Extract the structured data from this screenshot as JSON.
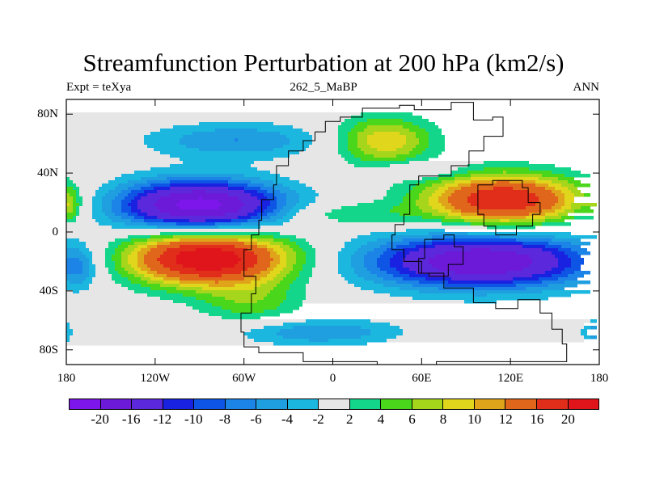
{
  "title": "Streamfunction Perturbation at 200 hPa (km2/s)",
  "subtitle": {
    "left": "Expt = teXya",
    "center": "262_5_MaBP",
    "right": "ANN"
  },
  "map_data": {
    "lat_ticks": [
      {
        "label": "80N",
        "lat": 80
      },
      {
        "label": "40N",
        "lat": 40
      },
      {
        "label": "0",
        "lat": 0
      },
      {
        "label": "40S",
        "lat": -40
      },
      {
        "label": "80S",
        "lat": -80
      }
    ],
    "lon_ticks": [
      {
        "label": "180",
        "lon": -180
      },
      {
        "label": "120W",
        "lon": -120
      },
      {
        "label": "60W",
        "lon": -60
      },
      {
        "label": "0",
        "lon": 0
      },
      {
        "label": "60E",
        "lon": 60
      },
      {
        "label": "120E",
        "lon": 120
      },
      {
        "label": "180",
        "lon": 180
      }
    ],
    "lat_range": [
      -90,
      90
    ],
    "lon_range": [
      -180,
      180
    ],
    "blobs": [
      {
        "name": "high-south-pacific",
        "lon": -85,
        "lat": -18,
        "rlon": 55,
        "rlat": 18,
        "peak": 24
      },
      {
        "name": "low-north-pacific",
        "lon": -90,
        "lat": 18,
        "rlon": 55,
        "rlat": 17,
        "peak": -22
      },
      {
        "name": "high-south-asia",
        "lon": 115,
        "lat": 22,
        "rlon": 52,
        "rlat": 17,
        "peak": 20
      },
      {
        "name": "low-indian-ocean",
        "lon": 100,
        "lat": -20,
        "rlon": 75,
        "rlat": 18,
        "peak": -20
      },
      {
        "name": "high-north-atlantic",
        "lon": 35,
        "lat": 62,
        "rlon": 32,
        "rlat": 16,
        "peak": 10
      },
      {
        "name": "low-north-pacific-high-lat",
        "lon": -65,
        "lat": 62,
        "rlon": 60,
        "rlat": 12,
        "peak": -6
      },
      {
        "name": "low-southern-ocean",
        "lon": -10,
        "lat": -68,
        "rlon": 55,
        "rlat": 9,
        "peak": -6
      },
      {
        "name": "high-south-america",
        "lon": -55,
        "lat": -48,
        "rlon": 35,
        "rlat": 15,
        "peak": 5
      },
      {
        "name": "high-atlantic-equator",
        "lon": 10,
        "lat": 12,
        "rlon": 45,
        "rlat": 8,
        "peak": 4
      },
      {
        "name": "high-dateline-west",
        "lon": -178,
        "lat": 18,
        "rlon": 8,
        "rlat": 12,
        "peak": 6
      },
      {
        "name": "low-dateline-east",
        "lon": 176,
        "lat": -68,
        "rlon": 8,
        "rlat": 8,
        "peak": -5
      },
      {
        "name": "low-western-pacific-band",
        "lon": 60,
        "lat": 42,
        "rlon": 25,
        "rlat": 6,
        "peak": -4
      },
      {
        "name": "low-south-pacific-edge",
        "lon": -170,
        "lat": -25,
        "rlon": 10,
        "rlat": 14,
        "peak": -4
      }
    ],
    "continent_outlines": [
      {
        "name": "pangea-outline",
        "points": [
          [
            -12,
            68
          ],
          [
            -5,
            75
          ],
          [
            5,
            78
          ],
          [
            20,
            84
          ],
          [
            45,
            86
          ],
          [
            55,
            83
          ],
          [
            80,
            88
          ],
          [
            95,
            76
          ],
          [
            108,
            78
          ],
          [
            115,
            65
          ],
          [
            102,
            55
          ],
          [
            92,
            45
          ],
          [
            80,
            38
          ],
          [
            65,
            38
          ],
          [
            58,
            32
          ],
          [
            52,
            24
          ],
          [
            52,
            12
          ],
          [
            48,
            5
          ],
          [
            42,
            -2
          ],
          [
            40,
            -12
          ],
          [
            48,
            -20
          ],
          [
            60,
            -28
          ],
          [
            75,
            -38
          ],
          [
            95,
            -48
          ],
          [
            110,
            -52
          ],
          [
            125,
            -46
          ],
          [
            140,
            -55
          ],
          [
            148,
            -66
          ],
          [
            155,
            -76
          ],
          [
            158,
            -88
          ],
          [
            70,
            -90
          ],
          [
            30,
            -88
          ],
          [
            -20,
            -82
          ],
          [
            -50,
            -78
          ],
          [
            -60,
            -68
          ],
          [
            -62,
            -55
          ],
          [
            -55,
            -42
          ],
          [
            -52,
            -30
          ],
          [
            -60,
            -12
          ],
          [
            -55,
            -2
          ],
          [
            -50,
            8
          ],
          [
            -48,
            22
          ],
          [
            -40,
            32
          ],
          [
            -38,
            45
          ],
          [
            -30,
            55
          ],
          [
            -20,
            62
          ],
          [
            -12,
            68
          ]
        ]
      },
      {
        "name": "east-asia-block",
        "points": [
          [
            98,
            32
          ],
          [
            108,
            35
          ],
          [
            128,
            30
          ],
          [
            132,
            20
          ],
          [
            140,
            12
          ],
          [
            135,
            4
          ],
          [
            124,
            -2
          ],
          [
            110,
            4
          ],
          [
            102,
            12
          ],
          [
            98,
            22
          ],
          [
            98,
            32
          ]
        ]
      },
      {
        "name": "tethys-block",
        "points": [
          [
            62,
            -5
          ],
          [
            75,
            -2
          ],
          [
            82,
            -10
          ],
          [
            88,
            -22
          ],
          [
            78,
            -30
          ],
          [
            65,
            -28
          ],
          [
            58,
            -18
          ],
          [
            62,
            -5
          ]
        ]
      }
    ]
  },
  "colorbar": {
    "labels": [
      "-20",
      "-16",
      "-12",
      "-10",
      "-8",
      "-6",
      "-4",
      "-2",
      "2",
      "4",
      "6",
      "8",
      "10",
      "12",
      "16",
      "20"
    ],
    "levels": [
      -20,
      -16,
      -12,
      -10,
      -8,
      -6,
      -4,
      -2,
      2,
      4,
      6,
      8,
      10,
      12,
      16,
      20
    ],
    "colors": [
      "#7d16ea",
      "#6c1ad8",
      "#5b28db",
      "#1922e0",
      "#0e55e6",
      "#1b84e6",
      "#1f9ee0",
      "#1bb7df",
      "#e6e6e6",
      "#13d68a",
      "#4ad61b",
      "#a6d61b",
      "#e0d61b",
      "#e0a41b",
      "#e0661b",
      "#e02e1b",
      "#e0141b"
    ]
  }
}
